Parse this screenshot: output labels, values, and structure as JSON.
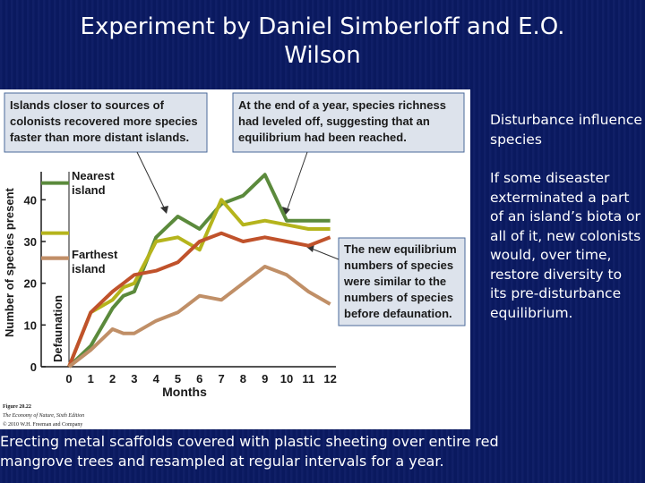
{
  "slide": {
    "title_line1": "Experiment by Daniel Simberloff and E.O.",
    "title_line2": "Wilson",
    "side_para1": "Disturbance influence species",
    "side_para2": "If some diseaster exterminated a part of an island’s biota or all of it, new colonists would, over time, restore diversity to its pre-disturbance equilibrium.",
    "bottom_line1": "Erecting metal scaffolds covered with plastic sheeting over entire red",
    "bottom_line2": "mangrove trees and resampled at regular intervals for a year."
  },
  "figure": {
    "callout_left": [
      "Islands closer to sources of",
      "colonists recovered more species",
      "faster than more distant islands."
    ],
    "callout_top": [
      "At the end of a year, species richness",
      "had leveled off, suggesting that an",
      "equilibrium had been reached."
    ],
    "callout_right": [
      "The new equilibrium",
      "numbers of species",
      "were similar to the",
      "numbers of species",
      "before defaunation."
    ],
    "label_nearest": [
      "Nearest",
      "island"
    ],
    "label_farthest": [
      "Farthest",
      "island"
    ],
    "defaunation_label": "Defaunation",
    "caption": [
      "Figure 20.22",
      "The Economy of Nature, Sixth Edition",
      "© 2010 W.H. Freeman and Company"
    ],
    "colors": {
      "dark_green": "#5b8a3c",
      "olive": "#b5b41c",
      "red": "#c0522b",
      "tan": "#c08f67",
      "callout_fill": "#dde3ec",
      "callout_stroke": "#4a6a9a"
    }
  },
  "chart_data": {
    "type": "line",
    "xlabel": "Months",
    "ylabel": "Number of species present",
    "x_ticks": [
      "0",
      "1",
      "2",
      "3",
      "4",
      "5",
      "6",
      "7",
      "8",
      "9",
      "10",
      "11",
      "12"
    ],
    "y_ticks": [
      "0",
      "10",
      "20",
      "30",
      "40"
    ],
    "xlim": [
      -0.5,
      12.5
    ],
    "ylim": [
      0,
      47
    ],
    "pre_defaunation": [
      {
        "color": "#5b8a3c",
        "y": 44
      },
      {
        "color": "#b5b41c",
        "y": 32
      },
      {
        "color": "#c0522b",
        "y": 26
      },
      {
        "color": "#c08f67",
        "y": 26
      }
    ],
    "series": [
      {
        "color": "#5b8a3c",
        "x": [
          0,
          1,
          2,
          2.5,
          3,
          4,
          5,
          6,
          7,
          8,
          9,
          10,
          11,
          12
        ],
        "y": [
          0,
          5,
          14,
          17,
          18,
          31,
          36,
          33,
          39,
          41,
          46,
          35,
          35,
          35
        ]
      },
      {
        "color": "#b5b41c",
        "x": [
          0,
          1,
          2,
          2.5,
          3,
          4,
          5,
          6,
          7,
          8,
          9,
          10,
          11,
          12
        ],
        "y": [
          0,
          13,
          16,
          19,
          20,
          30,
          31,
          28,
          40,
          34,
          35,
          34,
          33,
          33
        ]
      },
      {
        "color": "#c0522b",
        "x": [
          0,
          1,
          2,
          2.5,
          3,
          4,
          5,
          6,
          7,
          8,
          9,
          10,
          11,
          12
        ],
        "y": [
          0,
          13,
          18,
          20,
          22,
          23,
          25,
          30,
          32,
          30,
          31,
          30,
          29,
          31
        ]
      },
      {
        "color": "#c08f67",
        "x": [
          0,
          1,
          2,
          2.5,
          3,
          4,
          5,
          6,
          7,
          8,
          9,
          10,
          11,
          12
        ],
        "y": [
          0,
          4,
          9,
          8,
          8,
          11,
          13,
          17,
          16,
          20,
          24,
          22,
          18,
          15
        ]
      }
    ]
  }
}
